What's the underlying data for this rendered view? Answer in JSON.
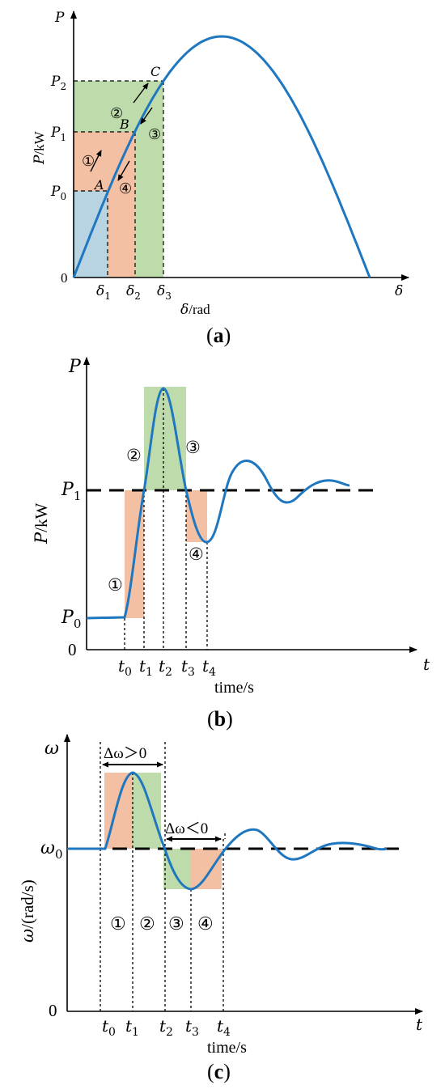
{
  "colors": {
    "curve": "#1f77c0",
    "blue_fill": "#b8d4e2",
    "orange_fill": "#f4c0a3",
    "green_fill": "#bedcab",
    "axis": "#000000"
  },
  "panels": {
    "a": {
      "caption_open": "(",
      "caption_letter": "a",
      "caption_close": ")",
      "y_axis_symbol": "P",
      "x_axis_symbol": "δ",
      "ylabel_sym": "P",
      "ylabel_unit": "/kW",
      "xlabel_sym": "δ",
      "xlabel_unit": "/rad",
      "origin": "0",
      "p_ticks": [
        {
          "b": "P",
          "s": "0"
        },
        {
          "b": "P",
          "s": "1"
        },
        {
          "b": "P",
          "s": "2"
        }
      ],
      "d_ticks": [
        {
          "b": "δ",
          "s": "1"
        },
        {
          "b": "δ",
          "s": "2"
        },
        {
          "b": "δ",
          "s": "3"
        }
      ],
      "points": [
        "A",
        "B",
        "C"
      ],
      "steps": [
        "①",
        "②",
        "③",
        "④"
      ]
    },
    "b": {
      "caption_open": "(",
      "caption_letter": "b",
      "caption_close": ")",
      "y_axis_symbol": "P",
      "x_axis_symbol": "t",
      "ylabel_sym": "P",
      "ylabel_unit": "/kW",
      "xlabel": "time/s",
      "origin": "0",
      "p_ticks": [
        {
          "b": "P",
          "s": "0"
        },
        {
          "b": "P",
          "s": "1"
        }
      ],
      "t_ticks": [
        {
          "b": "t",
          "s": "0"
        },
        {
          "b": "t",
          "s": "1"
        },
        {
          "b": "t",
          "s": "2"
        },
        {
          "b": "t",
          "s": "3"
        },
        {
          "b": "t",
          "s": "4"
        }
      ],
      "steps": [
        "①",
        "②",
        "③",
        "④"
      ]
    },
    "c": {
      "caption_open": "(",
      "caption_letter": "c",
      "caption_close": ")",
      "y_axis_symbol": "ω",
      "x_axis_symbol": "t",
      "ylabel_sym": "ω",
      "ylabel_unit": "/(rad/s)",
      "xlabel": "time/s",
      "origin": "0",
      "w0": {
        "b": "ω",
        "s": "0"
      },
      "t_ticks": [
        {
          "b": "t",
          "s": "0"
        },
        {
          "b": "t",
          "s": "1"
        },
        {
          "b": "t",
          "s": "2"
        },
        {
          "b": "t",
          "s": "3"
        },
        {
          "b": "t",
          "s": "4"
        }
      ],
      "delta_pos": "Δω＞0",
      "delta_neg": "Δω＜0",
      "steps": [
        "①",
        "②",
        "③",
        "④"
      ]
    }
  },
  "chart_data": [
    {
      "type": "line",
      "panel": "a",
      "description_x": "power angle",
      "series": [
        {
          "shape": "sine",
          "x_range": [
            "0",
            "π"
          ]
        }
      ]
    },
    {
      "type": "line",
      "panel": "b",
      "series": [
        {
          "shape": "damped oscillation from P0 to P1"
        }
      ]
    },
    {
      "type": "line",
      "panel": "c",
      "series": [
        {
          "shape": "damped oscillation about ω0"
        }
      ]
    }
  ]
}
